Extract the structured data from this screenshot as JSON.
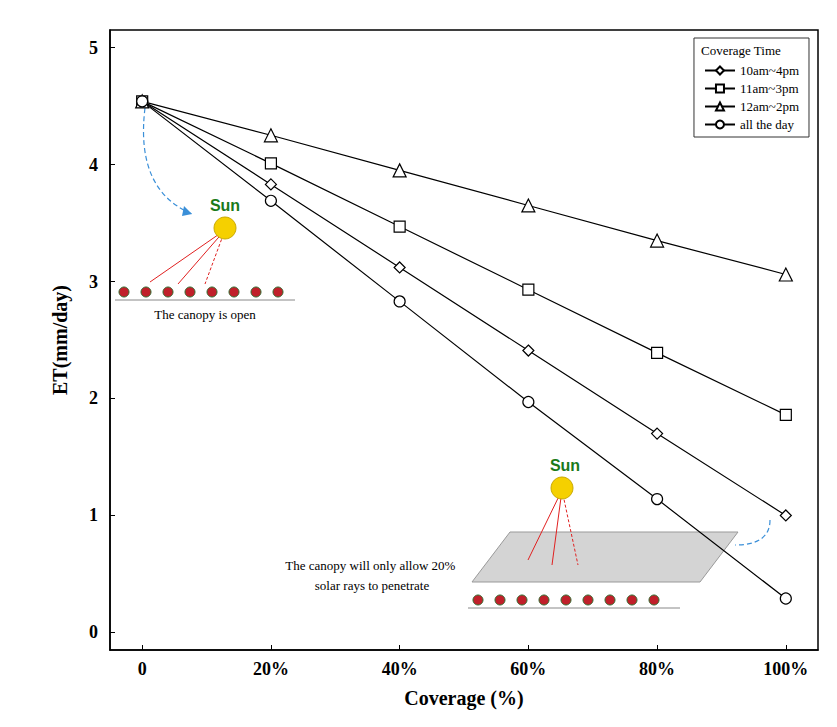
{
  "chart_data": {
    "type": "line",
    "x_label": "Coverage (%)",
    "y_label": "ET(mm/day)",
    "legend_title": "Coverage Time",
    "legend": "upper right",
    "grid": false,
    "x": [
      0,
      20,
      40,
      60,
      80,
      100
    ],
    "xlim": [
      -5,
      105
    ],
    "xticks": [
      {
        "value": 0,
        "label": "0"
      },
      {
        "value": 20,
        "label": "20%"
      },
      {
        "value": 40,
        "label": "40%"
      },
      {
        "value": 60,
        "label": "60%"
      },
      {
        "value": 80,
        "label": "80%"
      },
      {
        "value": 100,
        "label": "100%"
      }
    ],
    "ylim": [
      -0.15,
      5.15
    ],
    "yticks": [
      0,
      1,
      2,
      3,
      4,
      5
    ],
    "series": [
      {
        "name": "10am~4pm",
        "color": "#000000",
        "marker": "diamond",
        "values": [
          4.54,
          3.83,
          3.12,
          2.41,
          1.7,
          1.0
        ]
      },
      {
        "name": "11am~3pm",
        "color": "#000000",
        "marker": "square",
        "values": [
          4.54,
          4.01,
          3.47,
          2.93,
          2.39,
          1.86
        ]
      },
      {
        "name": "12am~2pm",
        "color": "#000000",
        "marker": "triangle",
        "values": [
          4.54,
          4.25,
          3.95,
          3.65,
          3.35,
          3.06
        ]
      },
      {
        "name": "all the day",
        "color": "#000000",
        "marker": "circle",
        "values": [
          4.54,
          3.69,
          2.83,
          1.97,
          1.14,
          0.29
        ]
      }
    ],
    "annotations": [
      "Sun",
      "The canopy is open",
      "Sun",
      "The canopy will only allow 20% solar rays to penetrate"
    ]
  }
}
